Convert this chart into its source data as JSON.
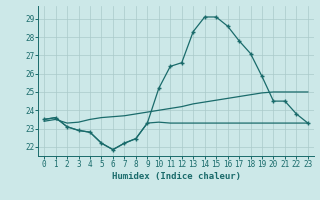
{
  "xlabel": "Humidex (Indice chaleur)",
  "ylabel": "",
  "bg_color": "#cce8e8",
  "line_color": "#1a6b6b",
  "grid_color": "#aacaca",
  "ylim": [
    21.5,
    29.7
  ],
  "xlim": [
    -0.5,
    23.5
  ],
  "yticks": [
    22,
    23,
    24,
    25,
    26,
    27,
    28,
    29
  ],
  "xticks": [
    0,
    1,
    2,
    3,
    4,
    5,
    6,
    7,
    8,
    9,
    10,
    11,
    12,
    13,
    14,
    15,
    16,
    17,
    18,
    19,
    20,
    21,
    22,
    23
  ],
  "curve1_x": [
    0,
    1,
    2,
    3,
    4,
    5,
    6,
    7,
    8,
    9,
    10,
    11,
    12,
    13,
    14,
    15,
    16,
    17,
    18,
    19,
    20,
    21,
    22,
    23
  ],
  "curve1_y": [
    23.5,
    23.6,
    23.1,
    22.9,
    22.8,
    22.2,
    21.85,
    22.2,
    22.45,
    23.3,
    23.35,
    23.3,
    23.3,
    23.3,
    23.3,
    23.3,
    23.3,
    23.3,
    23.3,
    23.3,
    23.3,
    23.3,
    23.3,
    23.3
  ],
  "curve2_x": [
    0,
    1,
    2,
    3,
    4,
    5,
    6,
    7,
    8,
    9,
    10,
    11,
    12,
    13,
    14,
    15,
    16,
    17,
    18,
    19,
    20,
    21,
    22,
    23
  ],
  "curve2_y": [
    23.4,
    23.5,
    23.3,
    23.35,
    23.5,
    23.6,
    23.65,
    23.7,
    23.8,
    23.9,
    24.0,
    24.1,
    24.2,
    24.35,
    24.45,
    24.55,
    24.65,
    24.75,
    24.85,
    24.95,
    25.0,
    25.0,
    25.0,
    25.0
  ],
  "curve3_x": [
    0,
    1,
    2,
    3,
    4,
    5,
    6,
    7,
    8,
    9,
    10,
    11,
    12,
    13,
    14,
    15,
    16,
    17,
    18,
    19,
    20,
    21,
    22,
    23
  ],
  "curve3_y": [
    23.5,
    23.6,
    23.1,
    22.9,
    22.8,
    22.2,
    21.85,
    22.2,
    22.45,
    23.3,
    25.2,
    26.4,
    26.6,
    28.3,
    29.1,
    29.1,
    28.6,
    27.8,
    27.1,
    25.85,
    24.5,
    24.5,
    23.8,
    23.3
  ]
}
